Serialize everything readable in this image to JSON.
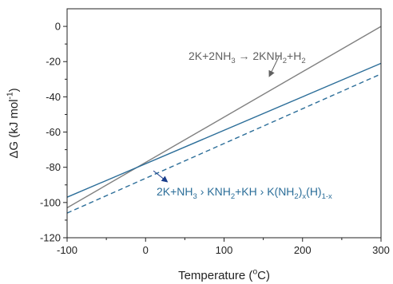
{
  "chart_data": {
    "type": "line",
    "xlabel": {
      "base": "Temperature (",
      "sup": "o",
      "tail": "C)"
    },
    "ylabel": {
      "base": "ΔG (kJ mol",
      "sup": "-1",
      "tail": ")"
    },
    "xlim": [
      -100,
      300
    ],
    "ylim": [
      -120,
      10
    ],
    "xticks": [
      -100,
      0,
      100,
      200,
      300
    ],
    "yticks": [
      0,
      -20,
      -40,
      -60,
      -80,
      -100,
      -120
    ],
    "xtick_labels": [
      "-100",
      "0",
      "100",
      "200",
      "300"
    ],
    "ytick_labels": [
      "0",
      "-20",
      "-40",
      "-60",
      "-80",
      "-100",
      "-120"
    ],
    "grid": false,
    "series": [
      {
        "x": [
          -100,
          300
        ],
        "y": [
          -103,
          0
        ],
        "color": "#808080",
        "dash": "solid"
      },
      {
        "x": [
          -100,
          300
        ],
        "y": [
          -97,
          -21
        ],
        "color": "#2c6e99",
        "dash": "solid"
      },
      {
        "x": [
          -100,
          300
        ],
        "y": [
          -106,
          -27
        ],
        "color": "#2c6e99",
        "dash": "dashed"
      }
    ],
    "annotations": [
      {
        "color": "#606060",
        "parts": [
          {
            "t": "2K+2NH",
            "s": "n"
          },
          {
            "t": "3",
            "s": "sub"
          },
          {
            "t": " → 2KNH",
            "s": "n"
          },
          {
            "t": "2",
            "s": "sub"
          },
          {
            "t": "+H",
            "s": "n"
          },
          {
            "t": "2",
            "s": "sub"
          }
        ],
        "arrow_from": [
          170,
          -17
        ],
        "arrow_to": [
          158,
          -28
        ]
      },
      {
        "color": "#2c6e99",
        "parts": [
          {
            "t": "2K+NH",
            "s": "n"
          },
          {
            "t": "3",
            "s": "sub"
          },
          {
            "t": "  › KNH",
            "s": "n"
          },
          {
            "t": "2",
            "s": "sub"
          },
          {
            "t": "+KH   › K(NH",
            "s": "n"
          },
          {
            "t": "2",
            "s": "sub"
          },
          {
            "t": ")",
            "s": "n"
          },
          {
            "t": "x",
            "s": "sub"
          },
          {
            "t": "(H)",
            "s": "n"
          },
          {
            "t": "1-x",
            "s": "sub"
          }
        ],
        "arrow_from": [
          10,
          -82
        ],
        "arrow_to": [
          27,
          -88
        ]
      }
    ]
  }
}
